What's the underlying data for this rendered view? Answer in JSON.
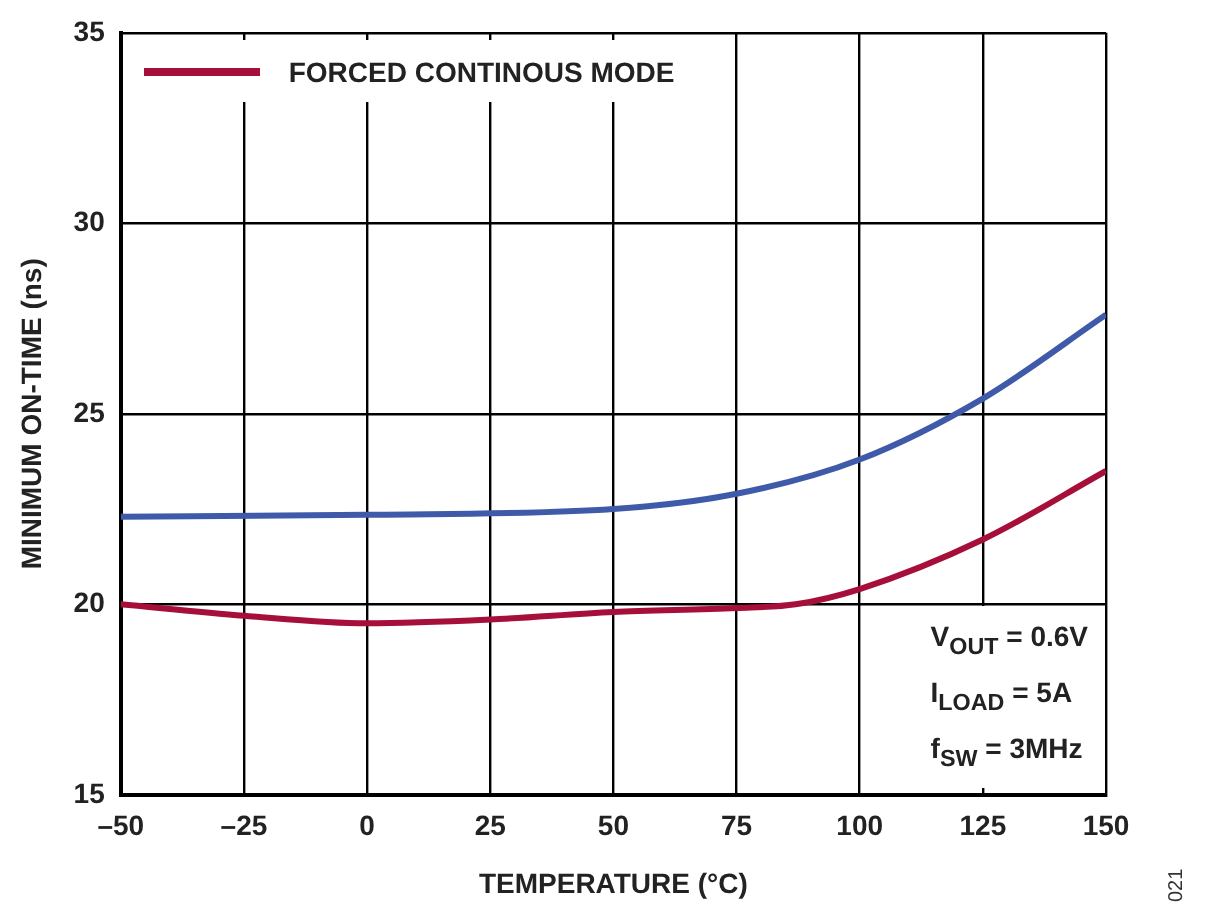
{
  "chart_data": {
    "type": "line",
    "xlabel": "TEMPERATURE (°C)",
    "ylabel": "MINIMUM ON-TIME (ns)",
    "xlim": [
      -50,
      150
    ],
    "xticks": [
      {
        "value": -50,
        "label": "–50"
      },
      {
        "value": -25,
        "label": "–25"
      },
      0,
      25,
      50,
      75,
      100,
      125,
      150
    ],
    "ylim": [
      15,
      35
    ],
    "yticks": [
      15,
      20,
      25,
      30,
      35
    ],
    "grid": true,
    "legend": "top left",
    "marker": "none",
    "line_style": "solid",
    "series": [
      {
        "name": "FORCED CONTINOUS MODE",
        "color": "#a50f3a",
        "x": [
          -50,
          -25,
          0,
          25,
          50,
          75,
          87,
          100,
          125,
          150
        ],
        "values": [
          20.0,
          19.7,
          19.5,
          19.6,
          19.8,
          19.9,
          20.0,
          20.4,
          21.7,
          23.5
        ]
      },
      {
        "color": "#3f5aa8",
        "x": [
          -50,
          0,
          50,
          75,
          100,
          125,
          150
        ],
        "values": [
          22.3,
          22.35,
          22.5,
          22.9,
          23.8,
          25.4,
          27.6
        ]
      }
    ],
    "annotations": [
      "V$_{OUT}$ = 0.6V",
      "I$_{LOAD}$ = 5A",
      "f$_{SW}$ = 3MHz",
      "021"
    ]
  }
}
